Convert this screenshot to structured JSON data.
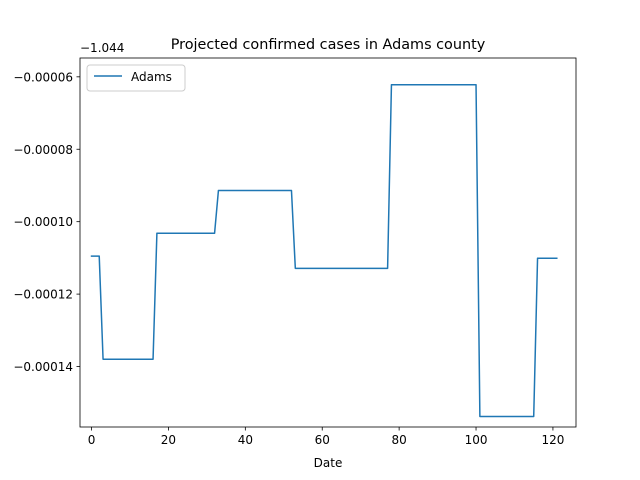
{
  "chart_data": {
    "type": "line",
    "title": "Projected confirmed cases in Adams county",
    "xlabel": "Date",
    "ylabel": "",
    "y_offset_label": "−1.044",
    "xlim": [
      -3,
      126
    ],
    "ylim": [
      -0.0001567,
      -5.48e-05
    ],
    "x_ticks": [
      0,
      20,
      40,
      60,
      80,
      100,
      120
    ],
    "x_tick_labels": [
      "0",
      "20",
      "40",
      "60",
      "80",
      "100",
      "120"
    ],
    "y_ticks": [
      -0.00014,
      -0.00012,
      -0.0001,
      -8e-05,
      -6e-05
    ],
    "y_tick_labels": [
      "−0.00014",
      "−0.00012",
      "−0.00010",
      "−0.00008",
      "−0.00006"
    ],
    "grid": false,
    "legend": {
      "position": "upper-left",
      "entries": [
        "Adams"
      ]
    },
    "series": [
      {
        "name": "Adams",
        "color": "#1f77b4",
        "x": [
          0,
          1,
          2,
          3,
          4,
          5,
          6,
          7,
          8,
          9,
          10,
          11,
          12,
          13,
          14,
          15,
          16,
          17,
          18,
          19,
          20,
          21,
          22,
          23,
          24,
          25,
          26,
          27,
          28,
          29,
          30,
          31,
          32,
          33,
          34,
          35,
          36,
          37,
          38,
          39,
          40,
          41,
          42,
          43,
          44,
          45,
          46,
          47,
          48,
          49,
          50,
          51,
          52,
          53,
          54,
          55,
          56,
          57,
          58,
          59,
          60,
          61,
          62,
          63,
          64,
          65,
          66,
          67,
          68,
          69,
          70,
          71,
          72,
          73,
          74,
          75,
          76,
          77,
          78,
          79,
          80,
          81,
          82,
          83,
          84,
          85,
          86,
          87,
          88,
          89,
          90,
          91,
          92,
          93,
          94,
          95,
          96,
          97,
          98,
          99,
          100,
          101,
          102,
          103,
          104,
          105,
          106,
          107,
          108,
          109,
          110,
          111,
          112,
          113,
          114,
          115,
          116,
          117,
          118,
          119,
          120,
          121
        ],
        "y": [
          -0.0001095,
          -0.0001095,
          -0.0001095,
          -0.000138,
          -0.000138,
          -0.000138,
          -0.000138,
          -0.000138,
          -0.000138,
          -0.000138,
          -0.000138,
          -0.000138,
          -0.000138,
          -0.000138,
          -0.000138,
          -0.000138,
          -0.000138,
          -0.0001032,
          -0.0001032,
          -0.0001032,
          -0.0001032,
          -0.0001032,
          -0.0001032,
          -0.0001032,
          -0.0001032,
          -0.0001032,
          -0.0001032,
          -0.0001032,
          -0.0001032,
          -0.0001032,
          -0.0001032,
          -0.0001032,
          -0.0001032,
          -9.14e-05,
          -9.14e-05,
          -9.14e-05,
          -9.14e-05,
          -9.14e-05,
          -9.14e-05,
          -9.14e-05,
          -9.14e-05,
          -9.14e-05,
          -9.14e-05,
          -9.14e-05,
          -9.14e-05,
          -9.14e-05,
          -9.14e-05,
          -9.14e-05,
          -9.14e-05,
          -9.14e-05,
          -9.14e-05,
          -9.14e-05,
          -9.14e-05,
          -0.0001129,
          -0.0001129,
          -0.0001129,
          -0.0001129,
          -0.0001129,
          -0.0001129,
          -0.0001129,
          -0.0001129,
          -0.0001129,
          -0.0001129,
          -0.0001129,
          -0.0001129,
          -0.0001129,
          -0.0001129,
          -0.0001129,
          -0.0001129,
          -0.0001129,
          -0.0001129,
          -0.0001129,
          -0.0001129,
          -0.0001129,
          -0.0001129,
          -0.0001129,
          -0.0001129,
          -0.0001129,
          -6.22e-05,
          -6.22e-05,
          -6.22e-05,
          -6.22e-05,
          -6.22e-05,
          -6.22e-05,
          -6.22e-05,
          -6.22e-05,
          -6.22e-05,
          -6.22e-05,
          -6.22e-05,
          -6.22e-05,
          -6.22e-05,
          -6.22e-05,
          -6.22e-05,
          -6.22e-05,
          -6.22e-05,
          -6.22e-05,
          -6.22e-05,
          -6.22e-05,
          -6.22e-05,
          -6.22e-05,
          -6.22e-05,
          -0.0001538,
          -0.0001538,
          -0.0001538,
          -0.0001538,
          -0.0001538,
          -0.0001538,
          -0.0001538,
          -0.0001538,
          -0.0001538,
          -0.0001538,
          -0.0001538,
          -0.0001538,
          -0.0001538,
          -0.0001538,
          -0.0001538,
          -0.0001101,
          -0.0001101,
          -0.0001101,
          -0.0001101,
          -0.0001101,
          -0.0001101
        ]
      }
    ]
  }
}
